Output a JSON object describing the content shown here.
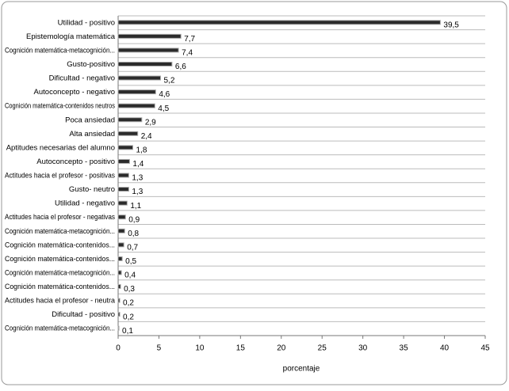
{
  "chart_data": {
    "type": "hbar",
    "categories": [
      "Utilidad - positivo",
      "Epistemología matemática",
      "Cognición matemática-metacognición...",
      "Gusto-positivo",
      "Dificultad - negativo",
      "Autoconcepto - negativo",
      "Cognición matemática-contenidos neutros",
      "Poca ansiedad",
      "Alta ansiedad",
      "Aptitudes necesarias del alumno",
      "Autoconcepto - positivo",
      "Actitudes hacia el profesor - positivas",
      "Gusto- neutro",
      "Utilidad - negativo",
      "Actitudes hacia el profesor - negativas",
      "Cognición matemática-metacognición...",
      "Cognición matemática-contenidos...",
      "Cognición matemática-contenidos...",
      "Cognición matemática-metacognición...",
      "Cognición matemática-contenidos...",
      "Actitudes hacia el profesor - neutra",
      "Dificultad - positivo",
      "Cognición matemática-metacognición..."
    ],
    "values": [
      39.5,
      7.7,
      7.4,
      6.6,
      5.2,
      4.6,
      4.5,
      2.9,
      2.4,
      1.8,
      1.4,
      1.3,
      1.3,
      1.1,
      0.9,
      0.8,
      0.7,
      0.5,
      0.4,
      0.3,
      0.2,
      0.2,
      0.1
    ],
    "value_labels": [
      "39,5",
      "7,7",
      "7,4",
      "6,6",
      "5,2",
      "4,6",
      "4,5",
      "2,9",
      "2,4",
      "1,8",
      "1,4",
      "1,3",
      "1,3",
      "1,1",
      "0,9",
      "0,8",
      "0,7",
      "0,5",
      "0,4",
      "0,3",
      "0,2",
      "0,2",
      "0,1"
    ],
    "color": "#2b2b2b",
    "xlabel": "porcentaje",
    "xlim": [
      0,
      45
    ],
    "xticks": [
      0,
      5,
      10,
      15,
      20,
      25,
      30,
      35,
      40,
      45
    ]
  }
}
